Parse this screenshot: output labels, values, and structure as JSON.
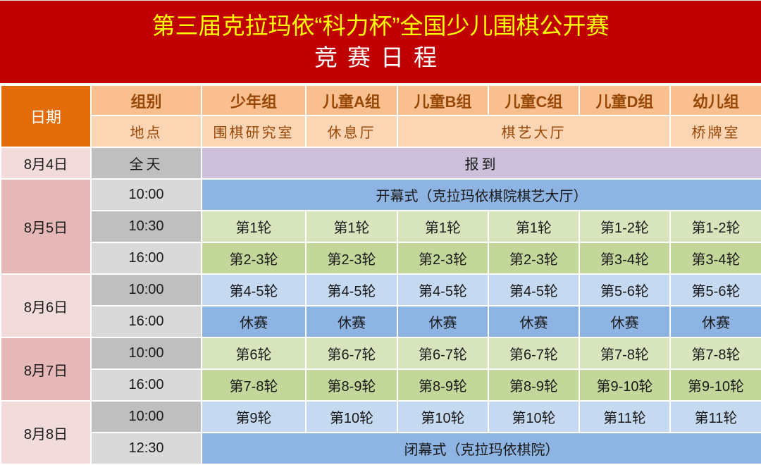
{
  "title": {
    "main": "第三届克拉玛依“科力杯”全国少儿围棋公开赛",
    "sub": "竞赛日程"
  },
  "header": {
    "date_label": "日期",
    "group_label": "组别",
    "location_label": "地点",
    "groups": [
      "少年组",
      "儿童A组",
      "儿童B组",
      "儿童C组",
      "儿童D组",
      "幼儿组"
    ],
    "locations": [
      {
        "text": "围棋研究室",
        "span": 1
      },
      {
        "text": "休息厅",
        "span": 1
      },
      {
        "text": "棋艺大厅",
        "span": 3
      },
      {
        "text": "桥牌室",
        "span": 1
      }
    ]
  },
  "colors": {
    "title_bg": "#c00000",
    "title_text": "#ffff00",
    "date_header": "#e26b0a",
    "group_header": "#fabf8f",
    "location_header": "#fcd5b4",
    "date_light": "#f2dcdb",
    "date_dark": "#e6b9b8",
    "time_dark": "#bfbfbf",
    "time_light": "#d9d9d9",
    "purple": "#ccc0da",
    "blue_dark": "#8db4e2",
    "blue_light": "#c5d9f1",
    "green_light": "#d8e4bc",
    "green_dark": "#c4d79b"
  },
  "schedule": [
    {
      "date": "8月4日",
      "date_color": "date_light",
      "slots": [
        {
          "time": "全天",
          "time_color": "time_dark",
          "serif": true,
          "color": "purple",
          "cells": [
            {
              "text": "报到",
              "span": 6
            }
          ]
        }
      ]
    },
    {
      "date": "8月5日",
      "date_color": "date_dark",
      "slots": [
        {
          "time": "10:00",
          "time_color": "time_light",
          "color": "blue_dark",
          "cells": [
            {
              "text": "开幕式（克拉玛依棋院棋艺大厅）",
              "span": 6
            }
          ]
        },
        {
          "time": "10:30",
          "time_color": "time_dark",
          "color": "green_light",
          "cells": [
            {
              "text": "第1轮"
            },
            {
              "text": "第1轮"
            },
            {
              "text": "第1轮"
            },
            {
              "text": "第1轮"
            },
            {
              "text": "第1-2轮"
            },
            {
              "text": "第1-2轮"
            }
          ]
        },
        {
          "time": "16:00",
          "time_color": "time_light",
          "color": "green_dark",
          "cells": [
            {
              "text": "第2-3轮"
            },
            {
              "text": "第2-3轮"
            },
            {
              "text": "第2-3轮"
            },
            {
              "text": "第2-3轮"
            },
            {
              "text": "第3-4轮"
            },
            {
              "text": "第3-4轮"
            }
          ]
        }
      ]
    },
    {
      "date": "8月6日",
      "date_color": "date_light",
      "slots": [
        {
          "time": "10:00",
          "time_color": "time_dark",
          "color": "blue_light",
          "cells": [
            {
              "text": "第4-5轮"
            },
            {
              "text": "第4-5轮"
            },
            {
              "text": "第4-5轮"
            },
            {
              "text": "第4-5轮"
            },
            {
              "text": "第5-6轮"
            },
            {
              "text": "第5-6轮"
            }
          ]
        },
        {
          "time": "16:00",
          "time_color": "time_light",
          "color": "blue_dark",
          "cells": [
            {
              "text": "休赛"
            },
            {
              "text": "休赛"
            },
            {
              "text": "休赛"
            },
            {
              "text": "休赛"
            },
            {
              "text": "休赛"
            },
            {
              "text": "休赛"
            }
          ]
        }
      ]
    },
    {
      "date": "8月7日",
      "date_color": "date_dark",
      "slots": [
        {
          "time": "10:00",
          "time_color": "time_dark",
          "color": "green_light",
          "cells": [
            {
              "text": "第6轮"
            },
            {
              "text": "第6-7轮"
            },
            {
              "text": "第6-7轮"
            },
            {
              "text": "第6-7轮"
            },
            {
              "text": "第7-8轮"
            },
            {
              "text": "第7-8轮"
            }
          ]
        },
        {
          "time": "16:00",
          "time_color": "time_light",
          "color": "green_dark",
          "cells": [
            {
              "text": "第7-8轮"
            },
            {
              "text": "第8-9轮"
            },
            {
              "text": "第8-9轮"
            },
            {
              "text": "第8-9轮"
            },
            {
              "text": "第9-10轮"
            },
            {
              "text": "第9-10轮"
            }
          ]
        }
      ]
    },
    {
      "date": "8月8日",
      "date_color": "date_light",
      "slots": [
        {
          "time": "10:00",
          "time_color": "time_dark",
          "color": "blue_light",
          "cells": [
            {
              "text": "第9轮"
            },
            {
              "text": "第10轮"
            },
            {
              "text": "第10轮"
            },
            {
              "text": "第10轮"
            },
            {
              "text": "第11轮"
            },
            {
              "text": "第11轮"
            }
          ]
        },
        {
          "time": "12:30",
          "time_color": "time_light",
          "color": "blue_dark",
          "cells": [
            {
              "text": "闭幕式（克拉玛依棋院）",
              "span": 6
            }
          ]
        }
      ]
    }
  ]
}
